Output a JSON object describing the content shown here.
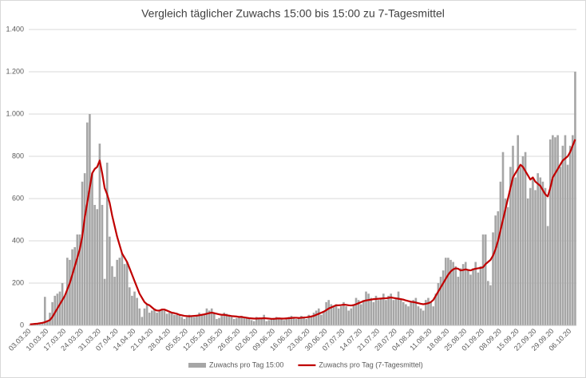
{
  "chart_data": {
    "type": "bar-line",
    "title": "Vergleich täglicher Zuwachs 15:00 bis 15:00 zu 7-Tagesmittel",
    "categories": [
      "03.03.20",
      null,
      null,
      null,
      null,
      null,
      null,
      "10.03.20",
      null,
      null,
      null,
      null,
      null,
      null,
      "17.03.20",
      null,
      null,
      null,
      null,
      null,
      null,
      "24.03.20",
      null,
      null,
      null,
      null,
      null,
      null,
      "31.03.20",
      null,
      null,
      null,
      null,
      null,
      null,
      "07.04.20",
      null,
      null,
      null,
      null,
      null,
      null,
      "14.04.20",
      null,
      null,
      null,
      null,
      null,
      null,
      "21.04.20",
      null,
      null,
      null,
      null,
      null,
      null,
      "28.04.20",
      null,
      null,
      null,
      null,
      null,
      null,
      "05.05.20",
      null,
      null,
      null,
      null,
      null,
      null,
      "12.05.20",
      null,
      null,
      null,
      null,
      null,
      null,
      "19.05.20",
      null,
      null,
      null,
      null,
      null,
      null,
      "26.05.20",
      null,
      null,
      null,
      null,
      null,
      null,
      "02.06.20",
      null,
      null,
      null,
      null,
      null,
      null,
      "09.06.20",
      null,
      null,
      null,
      null,
      null,
      null,
      "16.06.20",
      null,
      null,
      null,
      null,
      null,
      null,
      "23.06.20",
      null,
      null,
      null,
      null,
      null,
      null,
      "30.06.20",
      null,
      null,
      null,
      null,
      null,
      null,
      "07.07.20",
      null,
      null,
      null,
      null,
      null,
      null,
      "14.07.20",
      null,
      null,
      null,
      null,
      null,
      null,
      "21.07.20",
      null,
      null,
      null,
      null,
      null,
      null,
      "28.07.20",
      null,
      null,
      null,
      null,
      null,
      null,
      "04.08.20",
      null,
      null,
      null,
      null,
      null,
      null,
      "11.08.20",
      null,
      null,
      null,
      null,
      null,
      null,
      "18.08.20",
      null,
      null,
      null,
      null,
      null,
      null,
      "25.08.20",
      null,
      null,
      null,
      null,
      null,
      null,
      "01.09.20",
      null,
      null,
      null,
      null,
      null,
      null,
      "08.09.20",
      null,
      null,
      null,
      null,
      null,
      null,
      "15.09.20",
      null,
      null,
      null,
      null,
      null,
      null,
      "22.09.20",
      null,
      null,
      null,
      null,
      null,
      null,
      "29.09.20",
      null,
      null,
      null,
      null,
      null,
      null,
      "06.10.20",
      null,
      null
    ],
    "series": [
      {
        "name": "Zuwachs pro Tag 15:00",
        "type": "bar",
        "color": "#a6a6a6",
        "values": [
          3,
          5,
          8,
          10,
          12,
          15,
          135,
          20,
          60,
          110,
          140,
          150,
          160,
          200,
          140,
          320,
          310,
          360,
          370,
          430,
          430,
          680,
          720,
          960,
          1000,
          720,
          570,
          550,
          860,
          570,
          220,
          770,
          420,
          280,
          230,
          310,
          320,
          340,
          290,
          300,
          180,
          140,
          160,
          130,
          80,
          40,
          80,
          100,
          60,
          70,
          80,
          60,
          70,
          75,
          70,
          55,
          60,
          60,
          50,
          50,
          45,
          40,
          30,
          40,
          50,
          45,
          40,
          50,
          60,
          50,
          55,
          80,
          70,
          80,
          60,
          30,
          35,
          45,
          60,
          55,
          50,
          40,
          30,
          35,
          40,
          45,
          40,
          35,
          30,
          25,
          20,
          40,
          35,
          30,
          50,
          20,
          25,
          30,
          35,
          40,
          30,
          35,
          25,
          30,
          40,
          45,
          40,
          30,
          35,
          45,
          40,
          30,
          50,
          40,
          60,
          70,
          80,
          50,
          65,
          110,
          120,
          100,
          90,
          100,
          80,
          90,
          110,
          90,
          70,
          80,
          100,
          130,
          120,
          100,
          120,
          160,
          150,
          130,
          110,
          140,
          120,
          130,
          150,
          120,
          140,
          150,
          120,
          130,
          160,
          120,
          110,
          100,
          90,
          110,
          120,
          130,
          90,
          80,
          70,
          120,
          130,
          110,
          90,
          150,
          200,
          230,
          260,
          320,
          320,
          310,
          300,
          280,
          230,
          270,
          290,
          300,
          260,
          240,
          270,
          300,
          250,
          280,
          430,
          430,
          210,
          190,
          440,
          520,
          540,
          680,
          820,
          600,
          560,
          750,
          850,
          700,
          900,
          750,
          800,
          820,
          600,
          650,
          700,
          640,
          720,
          700,
          680,
          650,
          470,
          880,
          900,
          890,
          900,
          750,
          850,
          900,
          760,
          850,
          900,
          1200
        ]
      },
      {
        "name": "Zuwachs pro Tag (7-Tagesmittel)",
        "type": "line",
        "color": "#c00000",
        "values": [
          5,
          6,
          7,
          8,
          10,
          12,
          15,
          20,
          25,
          40,
          60,
          80,
          100,
          120,
          140,
          170,
          200,
          240,
          280,
          320,
          360,
          420,
          510,
          580,
          650,
          720,
          740,
          750,
          780,
          720,
          650,
          620,
          580,
          520,
          470,
          420,
          380,
          340,
          320,
          300,
          270,
          240,
          210,
          180,
          150,
          130,
          110,
          100,
          95,
          85,
          75,
          70,
          70,
          75,
          75,
          70,
          65,
          60,
          58,
          55,
          50,
          48,
          45,
          44,
          43,
          44,
          45,
          46,
          48,
          50,
          52,
          55,
          58,
          60,
          58,
          55,
          52,
          50,
          50,
          48,
          46,
          44,
          43,
          42,
          40,
          40,
          38,
          36,
          34,
          33,
          32,
          32,
          33,
          33,
          34,
          33,
          32,
          31,
          31,
          32,
          33,
          32,
          32,
          33,
          34,
          35,
          36,
          36,
          35,
          36,
          37,
          38,
          40,
          42,
          45,
          50,
          55,
          60,
          65,
          72,
          80,
          85,
          90,
          95,
          95,
          96,
          98,
          97,
          95,
          94,
          96,
          100,
          105,
          110,
          115,
          118,
          120,
          122,
          124,
          125,
          126,
          127,
          128,
          128,
          130,
          132,
          130,
          128,
          126,
          124,
          122,
          118,
          115,
          112,
          110,
          108,
          105,
          102,
          100,
          102,
          105,
          110,
          120,
          140,
          160,
          180,
          200,
          220,
          240,
          255,
          265,
          270,
          268,
          260,
          262,
          265,
          262,
          260,
          265,
          268,
          270,
          272,
          275,
          290,
          300,
          310,
          330,
          360,
          400,
          450,
          500,
          550,
          600,
          650,
          700,
          720,
          740,
          760,
          750,
          730,
          710,
          690,
          700,
          680,
          670,
          660,
          640,
          620,
          610,
          650,
          700,
          720,
          740,
          760,
          780,
          790,
          800,
          820,
          850,
          880
        ]
      }
    ],
    "ylim": [
      0,
      1400
    ],
    "yticks": [
      0,
      200,
      400,
      600,
      800,
      {
        "value": 1000,
        "label": "1.000"
      },
      {
        "value": 1200,
        "label": "1.200"
      },
      {
        "value": 1400,
        "label": "1.400"
      }
    ],
    "grid": true,
    "legend": "bottom"
  }
}
